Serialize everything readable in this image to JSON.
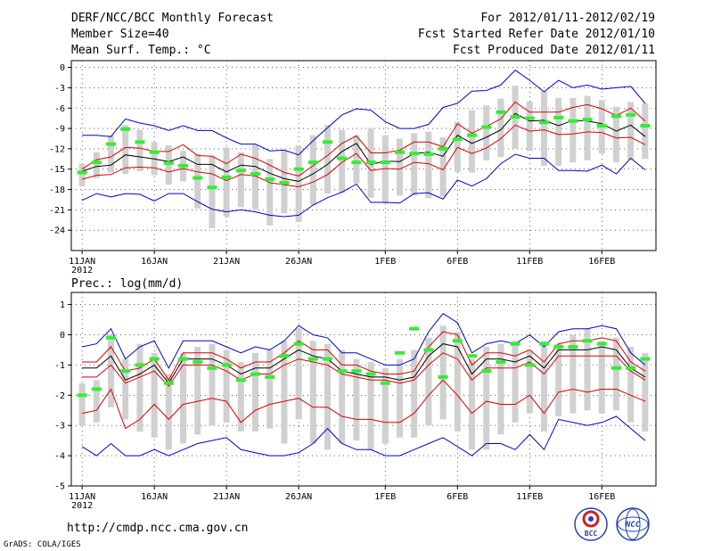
{
  "header": {
    "title": "DERF/NCC/BCC Monthly Forecast",
    "member": "Member Size=40",
    "variable": "Mean Surf. Temp.: °C",
    "period": "For 2012/01/11-2012/02/19",
    "start": "Fcst Started Refer Date 2012/01/10",
    "produced": "Fcst Produced Date 2012/01/11"
  },
  "footer": {
    "url": "http://cmdp.ncc.cma.gov.cn",
    "grads": "GrADS: COLA/IGES",
    "logo_bcc": "BCC",
    "logo_ncc": "NCC"
  },
  "colors": {
    "median": "#000000",
    "spread": "#dd0000",
    "extreme": "#0000cc",
    "mean": "#33ee33",
    "box": "#d0d0d0"
  },
  "chart_data": [
    {
      "type": "line",
      "title": "Mean Surf. Temp.: °C",
      "x": [
        "11JAN",
        "12JAN",
        "13JAN",
        "14JAN",
        "15JAN",
        "16JAN",
        "17JAN",
        "18JAN",
        "19JAN",
        "20JAN",
        "21JAN",
        "22JAN",
        "23JAN",
        "24JAN",
        "25JAN",
        "26JAN",
        "27JAN",
        "28JAN",
        "29JAN",
        "30JAN",
        "31JAN",
        "1FEB",
        "2FEB",
        "3FEB",
        "4FEB",
        "5FEB",
        "6FEB",
        "7FEB",
        "8FEB",
        "9FEB",
        "10FEB",
        "11FEB",
        "12FEB",
        "13FEB",
        "14FEB",
        "15FEB",
        "16FEB",
        "17FEB",
        "18FEB",
        "19FEB"
      ],
      "xticks": [
        {
          "index": 0,
          "label": "11JAN",
          "sub": "2012"
        },
        {
          "index": 5,
          "label": "16JAN"
        },
        {
          "index": 10,
          "label": "21JAN"
        },
        {
          "index": 15,
          "label": "26JAN"
        },
        {
          "index": 21,
          "label": "1FEB"
        },
        {
          "index": 26,
          "label": "6FEB"
        },
        {
          "index": 31,
          "label": "11FEB"
        },
        {
          "index": 36,
          "label": "16FEB"
        }
      ],
      "ylim": [
        -27,
        1
      ],
      "yticks": [
        0,
        -3,
        -6,
        -9,
        -12,
        -15,
        -18,
        -21,
        -24
      ],
      "series": [
        {
          "name": "upper extreme",
          "values": [
            -10,
            -10,
            -10.2,
            -7.6,
            -8.2,
            -8.6,
            -9.3,
            -8.6,
            -9.3,
            -9.3,
            -10.4,
            -11.3,
            -11.3,
            -12.3,
            -12.2,
            -12.9,
            -10.8,
            -8.9,
            -7,
            -6.1,
            -6.3,
            -8,
            -9,
            -9,
            -8.4,
            -5.9,
            -5.3,
            -3.5,
            -3.4,
            -2.6,
            -0.4,
            -1.9,
            -3.6,
            -1.9,
            -3,
            -2.6,
            -3.2,
            -3,
            -2.8,
            -5.3
          ]
        },
        {
          "name": "upper spread",
          "values": [
            -15,
            -13.6,
            -13.2,
            -11.8,
            -11.9,
            -12.4,
            -12.4,
            -11.4,
            -13,
            -13.1,
            -14.2,
            -12.8,
            -13.4,
            -14.4,
            -15.5,
            -16,
            -14.5,
            -13,
            -11.2,
            -10.1,
            -12.6,
            -12.6,
            -12.2,
            -11,
            -11,
            -11.7,
            -8.3,
            -9.7,
            -8.7,
            -7.6,
            -5.1,
            -6.6,
            -6.6,
            -6.6,
            -5.9,
            -5.5,
            -6.1,
            -7.1,
            -6,
            -7.9
          ]
        },
        {
          "name": "median",
          "values": [
            -15.3,
            -14.6,
            -14.4,
            -12.9,
            -13.2,
            -13.5,
            -13.9,
            -13.2,
            -14.3,
            -14.3,
            -15.4,
            -14.4,
            -14.6,
            -15.6,
            -16.4,
            -16.8,
            -15.7,
            -14.3,
            -12.4,
            -11.2,
            -14.3,
            -13.8,
            -13.9,
            -12.7,
            -12.5,
            -13.1,
            -10,
            -11.2,
            -10.3,
            -9.2,
            -6.8,
            -7.9,
            -7.8,
            -8.6,
            -7.8,
            -7.9,
            -8.3,
            -9.4,
            -8.5,
            -10.2
          ]
        },
        {
          "name": "lower spread",
          "values": [
            -16.5,
            -15.9,
            -15.8,
            -14.8,
            -14.7,
            -14.8,
            -15.4,
            -14.9,
            -15.4,
            -15.7,
            -16.7,
            -15.8,
            -16,
            -17,
            -17.3,
            -17.6,
            -16.9,
            -15.8,
            -14,
            -12.7,
            -15.2,
            -14.9,
            -15,
            -14,
            -14.2,
            -15.1,
            -11.8,
            -12.7,
            -11.9,
            -10.5,
            -8.5,
            -9.4,
            -9.2,
            -9.9,
            -9.8,
            -9.5,
            -9.6,
            -10.4,
            -10.3,
            -11.4
          ]
        },
        {
          "name": "lower extreme",
          "values": [
            -19.6,
            -18.6,
            -19.1,
            -18.6,
            -18.7,
            -19.7,
            -18.6,
            -18.6,
            -19.8,
            -20.9,
            -21.3,
            -21,
            -21.3,
            -21.8,
            -22,
            -21.8,
            -20.3,
            -19.2,
            -18.4,
            -17.2,
            -19.9,
            -19.9,
            -20,
            -18.6,
            -18.5,
            -19.4,
            -16.6,
            -17.5,
            -16.4,
            -14.2,
            -12.8,
            -13.4,
            -13.4,
            -15.2,
            -15.2,
            -15.3,
            -14.4,
            -15.7,
            -13.4,
            -15.1
          ]
        },
        {
          "name": "ensemble mean",
          "values": [
            -15.5,
            -14,
            -11.3,
            -9.1,
            -11,
            -12.5,
            -14.1,
            -14.5,
            -16.3,
            -17.7,
            -16.2,
            -15.2,
            -15.7,
            -16.5,
            -17,
            -15,
            -14,
            -11,
            -13.4,
            -14,
            -14,
            -14,
            -12.5,
            -12.7,
            -12.8,
            -12,
            -10.6,
            -10,
            -8.8,
            -6.6,
            -7.3,
            -7.5,
            -8.1,
            -7.4,
            -7.9,
            -7.7,
            -8.6,
            -7.2,
            -7,
            -8.6
          ]
        },
        {
          "name": "box top",
          "values": [
            -14.2,
            -12.5,
            -10,
            -8.5,
            -9.2,
            -11,
            -11.5,
            -12.3,
            -12.7,
            -13,
            -11.8,
            -12.5,
            -11.4,
            -13.5,
            -12.3,
            -11.5,
            -10,
            -8.5,
            -9.2,
            -10,
            -9,
            -10,
            -10.5,
            -9.7,
            -9.5,
            -10.3,
            -8,
            -6.3,
            -5.6,
            -4.6,
            -2.7,
            -5,
            -3.5,
            -4.5,
            -4.5,
            -4.2,
            -4.8,
            -5.8,
            -5.1,
            -5.3
          ]
        },
        {
          "name": "box bottom",
          "values": [
            -17.5,
            -16.3,
            -15.5,
            -15.7,
            -15.3,
            -15.9,
            -17.3,
            -16.8,
            -20.8,
            -23.7,
            -22,
            -20.6,
            -20.9,
            -23.3,
            -21.5,
            -22.8,
            -20.3,
            -18.6,
            -18.5,
            -17.1,
            -19.2,
            -20,
            -18.9,
            -18.9,
            -19.3,
            -19,
            -15.4,
            -15.5,
            -13.7,
            -13.2,
            -12,
            -12.3,
            -14.5,
            -14.5,
            -14,
            -13.7,
            -12.7,
            -14,
            -13.6,
            -13.5
          ]
        }
      ]
    },
    {
      "type": "line",
      "title": "Prec.: log(mm/d)",
      "x": [
        "11JAN",
        "12JAN",
        "13JAN",
        "14JAN",
        "15JAN",
        "16JAN",
        "17JAN",
        "18JAN",
        "19JAN",
        "20JAN",
        "21JAN",
        "22JAN",
        "23JAN",
        "24JAN",
        "25JAN",
        "26JAN",
        "27JAN",
        "28JAN",
        "29JAN",
        "30JAN",
        "31JAN",
        "1FEB",
        "2FEB",
        "3FEB",
        "4FEB",
        "5FEB",
        "6FEB",
        "7FEB",
        "8FEB",
        "9FEB",
        "10FEB",
        "11FEB",
        "12FEB",
        "13FEB",
        "14FEB",
        "15FEB",
        "16FEB",
        "17FEB",
        "18FEB",
        "19FEB"
      ],
      "xticks": [
        {
          "index": 0,
          "label": "11JAN",
          "sub": "2012"
        },
        {
          "index": 5,
          "label": "16JAN"
        },
        {
          "index": 10,
          "label": "21JAN"
        },
        {
          "index": 15,
          "label": "26JAN"
        },
        {
          "index": 21,
          "label": "1FEB"
        },
        {
          "index": 26,
          "label": "6FEB"
        },
        {
          "index": 31,
          "label": "11FEB"
        },
        {
          "index": 36,
          "label": "16FEB"
        }
      ],
      "ylim": [
        -5,
        1.4
      ],
      "yticks": [
        1,
        0,
        -1,
        -2,
        -3,
        -4,
        -5
      ],
      "series": [
        {
          "name": "upper extreme",
          "values": [
            -0.4,
            -0.3,
            0.2,
            -0.8,
            -0.4,
            -0.2,
            -1.1,
            -0.2,
            -0.2,
            -0.2,
            -0.4,
            -0.6,
            -0.4,
            -0.5,
            -0.2,
            0.3,
            0,
            -0.1,
            -0.6,
            -0.6,
            -0.8,
            -1,
            -1,
            -0.8,
            0.1,
            0.7,
            0.4,
            -0.6,
            -0.3,
            -0.2,
            -0.3,
            0,
            -0.4,
            0.1,
            0.2,
            0.2,
            0.3,
            0.2,
            -0.6,
            -1
          ]
        },
        {
          "name": "upper spread",
          "values": [
            -0.9,
            -0.9,
            -0.4,
            -1.2,
            -1.1,
            -0.8,
            -1.5,
            -0.6,
            -0.6,
            -0.6,
            -0.8,
            -1.1,
            -0.9,
            -0.9,
            -0.6,
            -0.2,
            -0.5,
            -0.5,
            -1,
            -1,
            -1.2,
            -1.3,
            -1.3,
            -1.2,
            -0.4,
            0.1,
            0,
            -1,
            -0.6,
            -0.6,
            -0.7,
            -0.5,
            -0.9,
            -0.3,
            -0.2,
            -0.2,
            -0.1,
            -0.2,
            -0.9,
            -1.2
          ]
        },
        {
          "name": "median",
          "values": [
            -1.1,
            -1.1,
            -0.7,
            -1.5,
            -1.3,
            -1,
            -1.6,
            -0.8,
            -0.8,
            -0.8,
            -1,
            -1.3,
            -1.1,
            -1.1,
            -0.8,
            -0.5,
            -0.7,
            -0.8,
            -1.2,
            -1.3,
            -1.4,
            -1.4,
            -1.5,
            -1.4,
            -0.7,
            -0.3,
            -0.4,
            -1.3,
            -0.8,
            -0.8,
            -0.9,
            -0.7,
            -1.1,
            -0.5,
            -0.5,
            -0.5,
            -0.4,
            -0.5,
            -1.1,
            -1.4
          ]
        },
        {
          "name": "lower spread",
          "values": [
            -1.4,
            -1.4,
            -1,
            -1.6,
            -1.4,
            -1.2,
            -1.7,
            -1,
            -1,
            -1,
            -1.2,
            -1.5,
            -1.3,
            -1.3,
            -1,
            -0.8,
            -0.9,
            -1,
            -1.3,
            -1.4,
            -1.5,
            -1.5,
            -1.6,
            -1.5,
            -1,
            -0.6,
            -0.8,
            -1.5,
            -1.1,
            -1.1,
            -1.1,
            -0.9,
            -1.3,
            -0.7,
            -0.7,
            -0.7,
            -0.7,
            -0.7,
            -1.2,
            -1.5
          ]
        },
        {
          "name": "lower red",
          "values": [
            -2.6,
            -2.5,
            -1.8,
            -3.1,
            -2.8,
            -2.3,
            -2.8,
            -2.3,
            -2.2,
            -2.1,
            -2.2,
            -2.9,
            -2.5,
            -2.3,
            -2.2,
            -2.1,
            -2.4,
            -2.4,
            -2.7,
            -2.8,
            -2.8,
            -2.9,
            -2.9,
            -2.6,
            -2,
            -1.5,
            -2,
            -2.6,
            -2.2,
            -2.3,
            -2.3,
            -2,
            -2.6,
            -1.9,
            -1.8,
            -1.9,
            -1.8,
            -1.8,
            -2,
            -2.2
          ]
        },
        {
          "name": "lower extreme",
          "values": [
            -3.7,
            -4,
            -3.6,
            -4,
            -4,
            -3.8,
            -4,
            -3.8,
            -3.6,
            -3.5,
            -3.4,
            -3.8,
            -3.9,
            -4,
            -4,
            -3.9,
            -3.6,
            -3.1,
            -3.6,
            -3.8,
            -3.8,
            -4,
            -4,
            -3.8,
            -3.6,
            -3.4,
            -3.7,
            -4,
            -3.6,
            -3.6,
            -3.8,
            -3.3,
            -3.8,
            -2.8,
            -2.9,
            -3,
            -2.9,
            -2.7,
            -3.1,
            -3.5
          ]
        },
        {
          "name": "ensemble mean",
          "values": [
            -2,
            -1.8,
            -0.1,
            -1.2,
            -1,
            -0.8,
            -1.6,
            -0.8,
            -0.9,
            -1.1,
            -1,
            -1.5,
            -1.3,
            -1.4,
            -0.7,
            -0.3,
            -0.8,
            -0.8,
            -1.2,
            -1.2,
            -1.3,
            -1.6,
            -0.6,
            0.2,
            -0.5,
            -1.4,
            -0.2,
            -0.7,
            -1.2,
            -0.9,
            -0.3,
            -1,
            -0.3,
            -0.4,
            -0.4,
            -0.2,
            -0.3,
            -1.1,
            -1.1,
            -0.8
          ]
        },
        {
          "name": "box top",
          "values": [
            -1.6,
            -1.5,
            0,
            -0.8,
            -0.3,
            -0.6,
            -1.3,
            -0.6,
            -0.4,
            -0.3,
            -0.5,
            -0.9,
            -0.6,
            -0.5,
            -0.2,
            0.2,
            -0.2,
            -0.3,
            -0.5,
            -0.8,
            -0.9,
            -1.1,
            -0.8,
            -0.5,
            -0.1,
            0.3,
            0.1,
            -0.8,
            -0.4,
            -0.3,
            -0.2,
            -0.5,
            -0.2,
            -0.3,
            0,
            0.2,
            -0.2,
            -0.1,
            -0.4,
            -0.6
          ]
        },
        {
          "name": "box bottom",
          "values": [
            -3,
            -2.9,
            -2.4,
            -2.8,
            -3.2,
            -3.4,
            -3.8,
            -3.6,
            -3.3,
            -3,
            -2.9,
            -3.2,
            -3.2,
            -3.1,
            -3.6,
            -2.8,
            -3.6,
            -3.8,
            -3.6,
            -3.5,
            -3.8,
            -3.6,
            -3.4,
            -3.4,
            -3,
            -2.8,
            -3.2,
            -3.8,
            -3.8,
            -3.3,
            -2.9,
            -2.6,
            -3.2,
            -2.7,
            -2.6,
            -2.5,
            -2.6,
            -2.5,
            -2.9,
            -3.2
          ]
        }
      ]
    }
  ]
}
